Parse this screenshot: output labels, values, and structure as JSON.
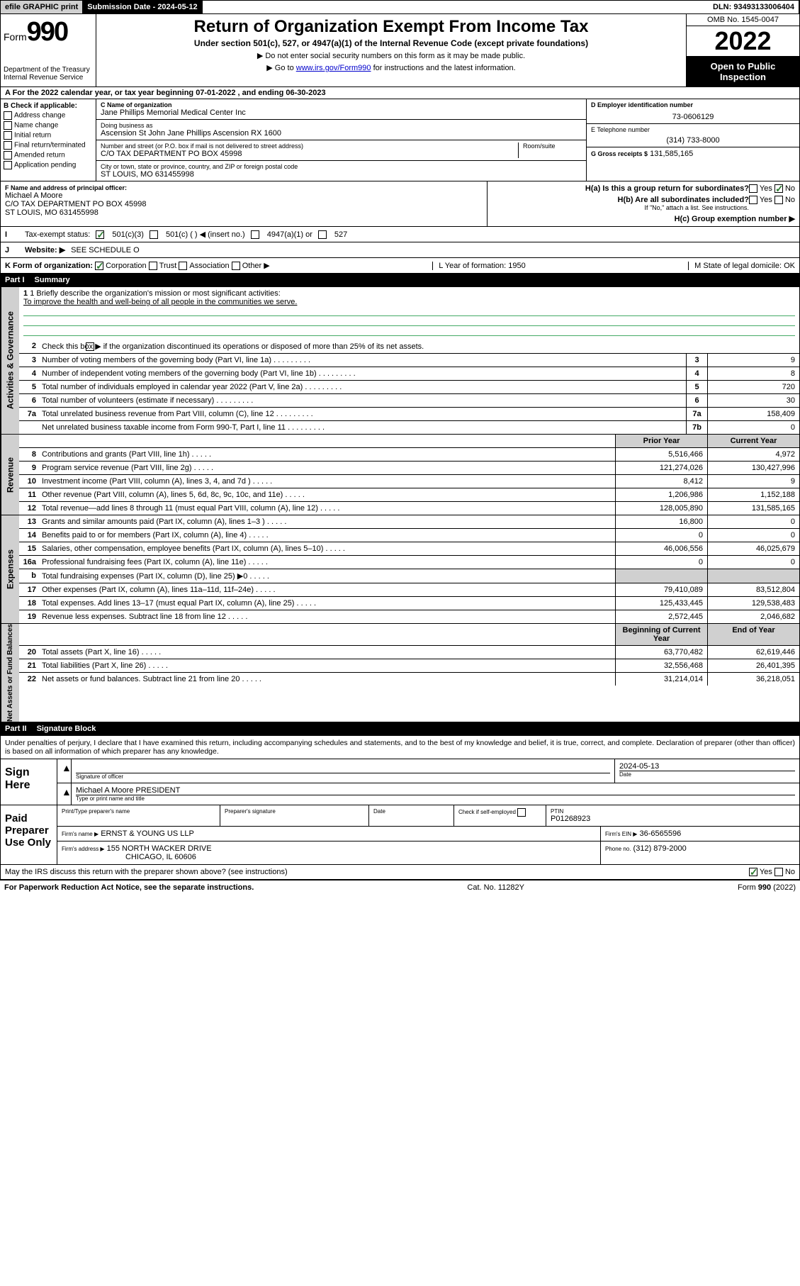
{
  "topbar": {
    "efile": "efile GRAPHIC print",
    "subdate_label": "Submission Date - 2024-05-12",
    "dln": "DLN: 93493133006404"
  },
  "header": {
    "form_word": "Form",
    "form_num": "990",
    "dept": "Department of the Treasury",
    "irs": "Internal Revenue Service",
    "title": "Return of Organization Exempt From Income Tax",
    "subtitle": "Under section 501(c), 527, or 4947(a)(1) of the Internal Revenue Code (except private foundations)",
    "note1": "▶ Do not enter social security numbers on this form as it may be made public.",
    "note2_pre": "▶ Go to ",
    "note2_link": "www.irs.gov/Form990",
    "note2_post": " for instructions and the latest information.",
    "omb": "OMB No. 1545-0047",
    "year": "2022",
    "open": "Open to Public Inspection"
  },
  "A": {
    "text": "A For the 2022 calendar year, or tax year beginning 07-01-2022   , and ending 06-30-2023"
  },
  "B": {
    "label": "B Check if applicable:",
    "opts": [
      "Address change",
      "Name change",
      "Initial return",
      "Final return/terminated",
      "Amended return",
      "Application pending"
    ]
  },
  "C": {
    "name_label": "C Name of organization",
    "name": "Jane Phillips Memorial Medical Center Inc",
    "dba_label": "Doing business as",
    "dba": "Ascension St John Jane Phillips Ascension RX 1600",
    "addr_label": "Number and street (or P.O. box if mail is not delivered to street address)",
    "room_label": "Room/suite",
    "addr": "C/O TAX DEPARTMENT PO BOX 45998",
    "city_label": "City or town, state or province, country, and ZIP or foreign postal code",
    "city": "ST LOUIS, MO  631455998"
  },
  "D": {
    "label": "D Employer identification number",
    "val": "73-0606129"
  },
  "E": {
    "label": "E Telephone number",
    "val": "(314) 733-8000"
  },
  "G": {
    "label": "G Gross receipts $",
    "val": "131,585,165"
  },
  "F": {
    "label": "F  Name and address of principal officer:",
    "name": "Michael A Moore",
    "addr1": "C/O TAX DEPARTMENT PO BOX 45998",
    "addr2": "ST LOUIS, MO  631455998"
  },
  "H": {
    "a": "H(a)  Is this a group return for subordinates?",
    "b": "H(b)  Are all subordinates included?",
    "b_note": "If \"No,\" attach a list. See instructions.",
    "c": "H(c)  Group exemption number ▶",
    "yes": "Yes",
    "no": "No"
  },
  "I": {
    "label": "Tax-exempt status:",
    "opts": [
      "501(c)(3)",
      "501(c) (  ) ◀ (insert no.)",
      "4947(a)(1) or",
      "527"
    ]
  },
  "J": {
    "label": "Website: ▶",
    "val": "SEE SCHEDULE O"
  },
  "K": {
    "label": "K Form of organization:",
    "opts": [
      "Corporation",
      "Trust",
      "Association",
      "Other ▶"
    ],
    "L": "L Year of formation: 1950",
    "M": "M State of legal domicile: OK"
  },
  "partI": {
    "hdr": "Part I",
    "title": "Summary",
    "q1a": "1  Briefly describe the organization's mission or most significant activities:",
    "q1b": "To improve the health and well-being of all people in the communities we serve.",
    "q2": "Check this box ▶        if the organization discontinued its operations or disposed of more than 25% of its net assets.",
    "rows_gov": [
      {
        "n": "3",
        "d": "Number of voting members of the governing body (Part VI, line 1a)",
        "b": "3",
        "v": "9"
      },
      {
        "n": "4",
        "d": "Number of independent voting members of the governing body (Part VI, line 1b)",
        "b": "4",
        "v": "8"
      },
      {
        "n": "5",
        "d": "Total number of individuals employed in calendar year 2022 (Part V, line 2a)",
        "b": "5",
        "v": "720"
      },
      {
        "n": "6",
        "d": "Total number of volunteers (estimate if necessary)",
        "b": "6",
        "v": "30"
      },
      {
        "n": "7a",
        "d": "Total unrelated business revenue from Part VIII, column (C), line 12",
        "b": "7a",
        "v": "158,409"
      },
      {
        "n": "",
        "d": "Net unrelated business taxable income from Form 990-T, Part I, line 11",
        "b": "7b",
        "v": "0"
      }
    ],
    "col_prior": "Prior Year",
    "col_curr": "Current Year",
    "rows_rev": [
      {
        "n": "8",
        "d": "Contributions and grants (Part VIII, line 1h)",
        "p": "5,516,466",
        "c": "4,972"
      },
      {
        "n": "9",
        "d": "Program service revenue (Part VIII, line 2g)",
        "p": "121,274,026",
        "c": "130,427,996"
      },
      {
        "n": "10",
        "d": "Investment income (Part VIII, column (A), lines 3, 4, and 7d )",
        "p": "8,412",
        "c": "9"
      },
      {
        "n": "11",
        "d": "Other revenue (Part VIII, column (A), lines 5, 6d, 8c, 9c, 10c, and 11e)",
        "p": "1,206,986",
        "c": "1,152,188"
      },
      {
        "n": "12",
        "d": "Total revenue—add lines 8 through 11 (must equal Part VIII, column (A), line 12)",
        "p": "128,005,890",
        "c": "131,585,165"
      }
    ],
    "rows_exp": [
      {
        "n": "13",
        "d": "Grants and similar amounts paid (Part IX, column (A), lines 1–3 )",
        "p": "16,800",
        "c": "0"
      },
      {
        "n": "14",
        "d": "Benefits paid to or for members (Part IX, column (A), line 4)",
        "p": "0",
        "c": "0"
      },
      {
        "n": "15",
        "d": "Salaries, other compensation, employee benefits (Part IX, column (A), lines 5–10)",
        "p": "46,006,556",
        "c": "46,025,679"
      },
      {
        "n": "16a",
        "d": "Professional fundraising fees (Part IX, column (A), line 11e)",
        "p": "0",
        "c": "0"
      },
      {
        "n": "b",
        "d": "Total fundraising expenses (Part IX, column (D), line 25) ▶0",
        "p": "",
        "c": "",
        "grey": true
      },
      {
        "n": "17",
        "d": "Other expenses (Part IX, column (A), lines 11a–11d, 11f–24e)",
        "p": "79,410,089",
        "c": "83,512,804"
      },
      {
        "n": "18",
        "d": "Total expenses. Add lines 13–17 (must equal Part IX, column (A), line 25)",
        "p": "125,433,445",
        "c": "129,538,483"
      },
      {
        "n": "19",
        "d": "Revenue less expenses. Subtract line 18 from line 12",
        "p": "2,572,445",
        "c": "2,046,682"
      }
    ],
    "col_begin": "Beginning of Current Year",
    "col_end": "End of Year",
    "rows_na": [
      {
        "n": "20",
        "d": "Total assets (Part X, line 16)",
        "p": "63,770,482",
        "c": "62,619,446"
      },
      {
        "n": "21",
        "d": "Total liabilities (Part X, line 26)",
        "p": "32,556,468",
        "c": "26,401,395"
      },
      {
        "n": "22",
        "d": "Net assets or fund balances. Subtract line 21 from line 20",
        "p": "31,214,014",
        "c": "36,218,051"
      }
    ],
    "side_gov": "Activities & Governance",
    "side_rev": "Revenue",
    "side_exp": "Expenses",
    "side_na": "Net Assets or Fund Balances"
  },
  "partII": {
    "hdr": "Part II",
    "title": "Signature Block",
    "decl": "Under penalties of perjury, I declare that I have examined this return, including accompanying schedules and statements, and to the best of my knowledge and belief, it is true, correct, and complete. Declaration of preparer (other than officer) is based on all information of which preparer has any knowledge.",
    "sign_here": "Sign Here",
    "sig_officer": "Signature of officer",
    "sig_date": "2024-05-13",
    "date_lbl": "Date",
    "officer": "Michael A Moore PRESIDENT",
    "type_name": "Type or print name and title",
    "paid": "Paid Preparer Use Only",
    "p_name_lbl": "Print/Type preparer's name",
    "p_sig_lbl": "Preparer's signature",
    "p_date_lbl": "Date",
    "p_check": "Check          if self-employed",
    "ptin_lbl": "PTIN",
    "ptin": "P01268923",
    "firm_name_lbl": "Firm's name    ▶",
    "firm_name": "ERNST & YOUNG US LLP",
    "firm_ein_lbl": "Firm's EIN ▶",
    "firm_ein": "36-6565596",
    "firm_addr_lbl": "Firm's address ▶",
    "firm_addr1": "155 NORTH WACKER DRIVE",
    "firm_addr2": "CHICAGO, IL  60606",
    "firm_phone_lbl": "Phone no.",
    "firm_phone": "(312) 879-2000",
    "discuss": "May the IRS discuss this return with the preparer shown above? (see instructions)"
  },
  "footer": {
    "pra": "For Paperwork Reduction Act Notice, see the separate instructions.",
    "cat": "Cat. No. 11282Y",
    "form": "Form 990 (2022)"
  }
}
